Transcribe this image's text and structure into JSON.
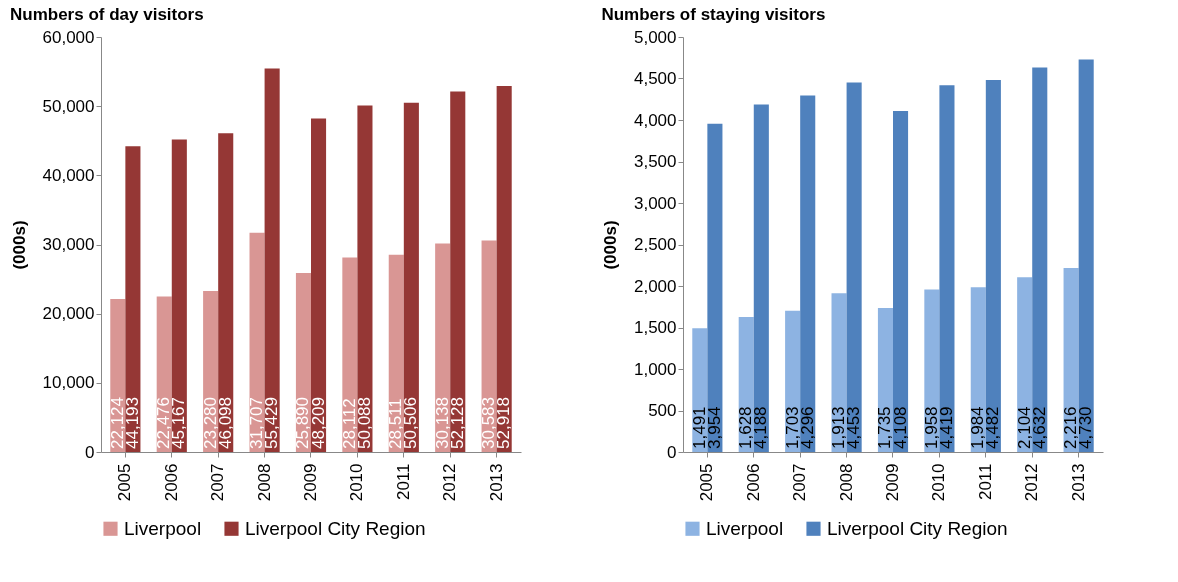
{
  "chart_data": [
    {
      "type": "bar",
      "title": "Numbers of day visitors",
      "ylabel": "(000s)",
      "categories": [
        "2005",
        "2006",
        "2007",
        "2008",
        "2009",
        "2010",
        "2011",
        "2012",
        "2013"
      ],
      "series": [
        {
          "name": "Liverpool",
          "color": "#d99694",
          "values": [
            22124,
            22476,
            23280,
            31707,
            25890,
            28112,
            28511,
            30138,
            30583
          ],
          "value_labels": [
            "22,124",
            "22,476",
            "23,280",
            "31,707",
            "25,890",
            "28,112",
            "28,511",
            "30,138",
            "30,583"
          ]
        },
        {
          "name": "Liverpool City Region",
          "color": "#953735",
          "values": [
            44193,
            45167,
            46098,
            55429,
            48209,
            50088,
            50506,
            52128,
            52918
          ],
          "value_labels": [
            "44,193",
            "45,167",
            "46,098",
            "55,429",
            "48,209",
            "50,088",
            "50,506",
            "52,128",
            "52,918"
          ]
        }
      ],
      "ylim": [
        0,
        60000
      ],
      "yticks": [
        {
          "value": 0,
          "label": "0"
        },
        {
          "value": 10000,
          "label": "10,000"
        },
        {
          "value": 20000,
          "label": "20,000"
        },
        {
          "value": 30000,
          "label": "30,000"
        },
        {
          "value": 40000,
          "label": "40,000"
        },
        {
          "value": 50000,
          "label": "50,000"
        },
        {
          "value": 60000,
          "label": "60,000"
        }
      ],
      "legend": "bottom",
      "grid": false
    },
    {
      "type": "bar",
      "title": "Numbers of staying visitors",
      "ylabel": "(000s)",
      "categories": [
        "2005",
        "2006",
        "2007",
        "2008",
        "2009",
        "2010",
        "2011",
        "2012",
        "2013"
      ],
      "series": [
        {
          "name": "Liverpool",
          "color": "#8db3e2",
          "values": [
            1491,
            1628,
            1703,
            1913,
            1735,
            1958,
            1984,
            2104,
            2216
          ],
          "value_labels": [
            "1,491",
            "1,628",
            "1,703",
            "1,913",
            "1,735",
            "1,958",
            "1,984",
            "2,104",
            "2,216"
          ]
        },
        {
          "name": "Liverpool City Region",
          "color": "#4f81bd",
          "values": [
            3954,
            4188,
            4296,
            4453,
            4108,
            4419,
            4482,
            4632,
            4730
          ],
          "value_labels": [
            "3,954",
            "4,188",
            "4,296",
            "4,453",
            "4,108",
            "4,419",
            "4,482",
            "4,632",
            "4,730"
          ]
        }
      ],
      "ylim": [
        0,
        5000
      ],
      "yticks": [
        {
          "value": 0,
          "label": "0"
        },
        {
          "value": 500,
          "label": "500"
        },
        {
          "value": 1000,
          "label": "1,000"
        },
        {
          "value": 1500,
          "label": "1,500"
        },
        {
          "value": 2000,
          "label": "2,000"
        },
        {
          "value": 2500,
          "label": "2,500"
        },
        {
          "value": 3000,
          "label": "3,000"
        },
        {
          "value": 3500,
          "label": "3,500"
        },
        {
          "value": 4000,
          "label": "4,000"
        },
        {
          "value": 4500,
          "label": "4,500"
        },
        {
          "value": 5000,
          "label": "5,000"
        }
      ],
      "legend": "bottom",
      "grid": false
    }
  ]
}
